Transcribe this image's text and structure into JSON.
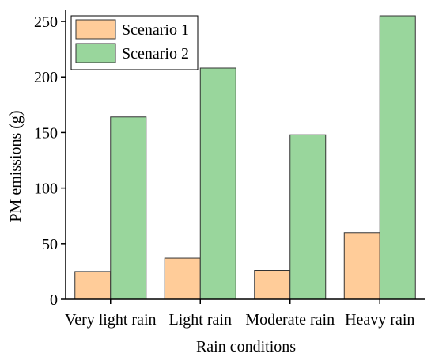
{
  "chart_data": {
    "type": "bar",
    "title": "",
    "xlabel": "Rain conditions",
    "ylabel": "PM emissions (g)",
    "categories": [
      "Very light rain",
      "Light rain",
      "Moderate rain",
      "Heavy rain"
    ],
    "series": [
      {
        "name": "Scenario 1",
        "values": [
          25,
          37,
          26,
          60
        ],
        "color": "#ffcc99"
      },
      {
        "name": "Scenario 2",
        "values": [
          164,
          208,
          148,
          255
        ],
        "color": "#99d69c"
      }
    ],
    "ylim": [
      0,
      260
    ],
    "yticks": [
      0,
      50,
      100,
      150,
      200,
      250
    ],
    "grid": false,
    "legend": "top-left",
    "edge_color": "#333333"
  }
}
